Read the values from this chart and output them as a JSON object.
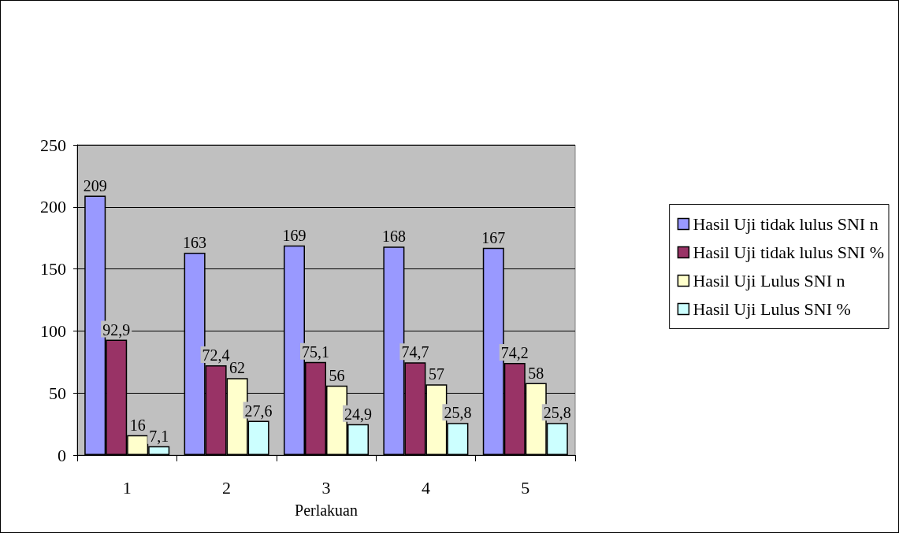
{
  "chart_data": {
    "type": "bar",
    "xlabel": "Perlakuan",
    "categories": [
      "1",
      "2",
      "3",
      "4",
      "5"
    ],
    "series": [
      {
        "name": "Hasil Uji tidak lulus SNI n",
        "color": "#9999ff",
        "values": [
          209,
          163,
          169,
          168,
          167
        ],
        "value_labels": [
          "209",
          "163",
          "169",
          "168",
          "167"
        ]
      },
      {
        "name": "Hasil Uji tidak lulus SNI %",
        "color": "#993366",
        "values": [
          92.9,
          72.4,
          75.1,
          74.7,
          74.2
        ],
        "value_labels": [
          "92,9",
          "72,4",
          "75,1",
          "74,7",
          "74,2"
        ]
      },
      {
        "name": "Hasil Uji Lulus SNI n",
        "color": "#ffffcc",
        "values": [
          16,
          62,
          56,
          57,
          58
        ],
        "value_labels": [
          "16",
          "62",
          "56",
          "57",
          "58"
        ]
      },
      {
        "name": "Hasil Uji Lulus SNI %",
        "color": "#ccffff",
        "values": [
          7.1,
          27.6,
          24.9,
          25.8,
          25.8
        ],
        "value_labels": [
          "7,1",
          "27,6",
          "24,9",
          "25,8",
          "25,8"
        ]
      }
    ],
    "ylim": [
      0,
      250
    ],
    "yticks": [
      0,
      50,
      100,
      150,
      200,
      250
    ],
    "grid": "y",
    "legend": "right"
  }
}
